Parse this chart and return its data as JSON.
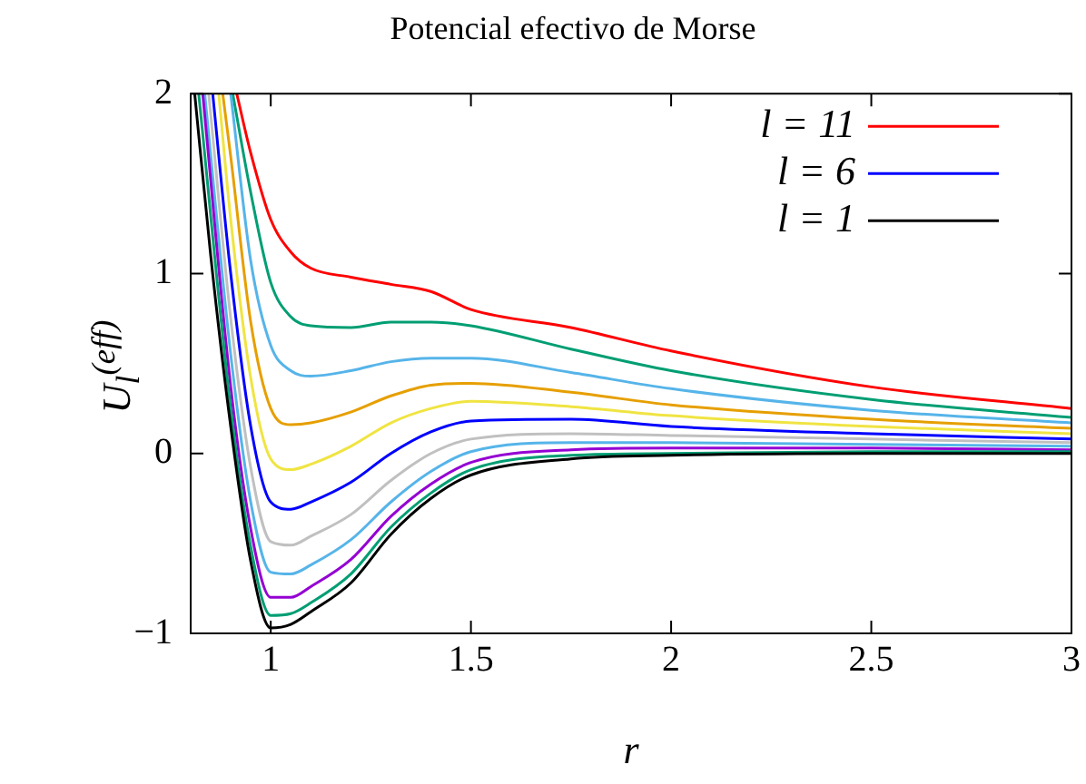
{
  "chart_data": {
    "type": "line",
    "title": "Potencial efectivo de Morse",
    "xlabel": "r",
    "ylabel": "U$_{l}$$^{(eff)}$",
    "xlim": [
      0.8,
      3
    ],
    "xticks": [
      1,
      1.5,
      2,
      2.5,
      3
    ],
    "ylim": [
      -1,
      2
    ],
    "yticks": [
      {
        "value": -1,
        "label": "−1"
      },
      0,
      1,
      2
    ],
    "grid": false,
    "legend": "top right",
    "marker": "none",
    "line_style": "solid",
    "series": [
      {
        "color": "#000000",
        "name": "l = 1",
        "x": [
          0.81,
          0.85,
          0.9,
          0.95,
          1.0,
          1.05,
          1.1,
          1.2,
          1.3,
          1.4,
          1.5,
          1.75,
          2.0,
          2.5,
          3.0
        ],
        "values": [
          2,
          1.1,
          0.15,
          -0.6,
          -0.97,
          -0.95,
          -0.88,
          -0.72,
          -0.45,
          -0.25,
          -0.12,
          -0.03,
          -0.01,
          0.0,
          0.0
        ]
      },
      {
        "color": "#009e73",
        "x": [
          0.82,
          0.9,
          0.95,
          1.0,
          1.05,
          1.1,
          1.2,
          1.3,
          1.4,
          1.5,
          1.75,
          2.0,
          2.5,
          3.0
        ],
        "values": [
          2,
          0.25,
          -0.52,
          -0.9,
          -0.89,
          -0.83,
          -0.67,
          -0.41,
          -0.22,
          -0.09,
          -0.01,
          0.0,
          0.01,
          0.01
        ]
      },
      {
        "color": "#9400d3",
        "x": [
          0.83,
          0.9,
          0.95,
          1.0,
          1.05,
          1.1,
          1.2,
          1.3,
          1.4,
          1.5,
          1.75,
          2.0,
          2.5,
          3.0
        ],
        "values": [
          2,
          0.37,
          -0.42,
          -0.8,
          -0.8,
          -0.74,
          -0.59,
          -0.35,
          -0.17,
          -0.05,
          0.02,
          0.03,
          0.03,
          0.02
        ]
      },
      {
        "color": "#56b4e9",
        "x": [
          0.835,
          0.9,
          0.95,
          1.0,
          1.05,
          1.1,
          1.2,
          1.3,
          1.4,
          1.5,
          1.75,
          2.0,
          2.5,
          3.0
        ],
        "values": [
          2,
          0.55,
          -0.27,
          -0.66,
          -0.67,
          -0.62,
          -0.48,
          -0.27,
          -0.1,
          0.01,
          0.06,
          0.06,
          0.05,
          0.04
        ]
      },
      {
        "color": "#c0c0c0",
        "x": [
          0.845,
          0.9,
          0.95,
          1.0,
          1.05,
          1.1,
          1.2,
          1.3,
          1.4,
          1.5,
          1.75,
          2.0,
          2.5,
          3.0
        ],
        "values": [
          2,
          0.75,
          -0.08,
          -0.49,
          -0.51,
          -0.46,
          -0.34,
          -0.15,
          0.0,
          0.08,
          0.11,
          0.1,
          0.08,
          0.06
        ]
      },
      {
        "color": "#0000ff",
        "name": "l = 6",
        "x": [
          0.855,
          0.9,
          0.95,
          1.0,
          1.05,
          1.1,
          1.2,
          1.3,
          1.4,
          1.5,
          1.75,
          2.0,
          2.5,
          3.0
        ],
        "values": [
          2,
          1.0,
          0.15,
          -0.27,
          -0.31,
          -0.27,
          -0.16,
          0.0,
          0.12,
          0.18,
          0.19,
          0.15,
          0.11,
          0.08
        ]
      },
      {
        "color": "#f0e442",
        "x": [
          0.87,
          0.9,
          0.95,
          1.0,
          1.05,
          1.1,
          1.2,
          1.3,
          1.4,
          1.5,
          1.75,
          2.0,
          2.5,
          3.0
        ],
        "values": [
          2,
          1.3,
          0.42,
          -0.03,
          -0.09,
          -0.06,
          0.04,
          0.17,
          0.25,
          0.29,
          0.26,
          0.21,
          0.15,
          0.11
        ]
      },
      {
        "color": "#e69f00",
        "x": [
          0.88,
          0.9,
          0.95,
          1.0,
          1.05,
          1.1,
          1.2,
          1.3,
          1.4,
          1.5,
          1.75,
          2.0,
          2.5,
          3.0
        ],
        "values": [
          2,
          1.65,
          0.73,
          0.25,
          0.16,
          0.17,
          0.23,
          0.32,
          0.38,
          0.39,
          0.34,
          0.27,
          0.19,
          0.14
        ]
      },
      {
        "color": "#56b4e9",
        "x": [
          0.9,
          0.95,
          1.0,
          1.05,
          1.1,
          1.2,
          1.3,
          1.4,
          1.5,
          1.75,
          2.0,
          2.5,
          3.0
        ],
        "values": [
          2,
          1.07,
          0.6,
          0.46,
          0.43,
          0.46,
          0.51,
          0.53,
          0.53,
          0.45,
          0.36,
          0.24,
          0.17
        ]
      },
      {
        "color": "#009e73",
        "x": [
          0.905,
          0.95,
          1.0,
          1.05,
          1.1,
          1.2,
          1.3,
          1.4,
          1.5,
          1.75,
          2.0,
          2.5,
          3.0
        ],
        "values": [
          2,
          1.45,
          0.95,
          0.76,
          0.71,
          0.7,
          0.73,
          0.73,
          0.71,
          0.58,
          0.46,
          0.3,
          0.2
        ]
      },
      {
        "color": "#ff0000",
        "name": "l = 11",
        "x": [
          0.915,
          0.95,
          1.0,
          1.05,
          1.1,
          1.2,
          1.3,
          1.4,
          1.5,
          1.75,
          2.0,
          2.5,
          3.0
        ],
        "values": [
          2,
          1.67,
          1.3,
          1.12,
          1.03,
          0.98,
          0.94,
          0.9,
          0.8,
          0.7,
          0.57,
          0.37,
          0.25
        ]
      }
    ]
  }
}
